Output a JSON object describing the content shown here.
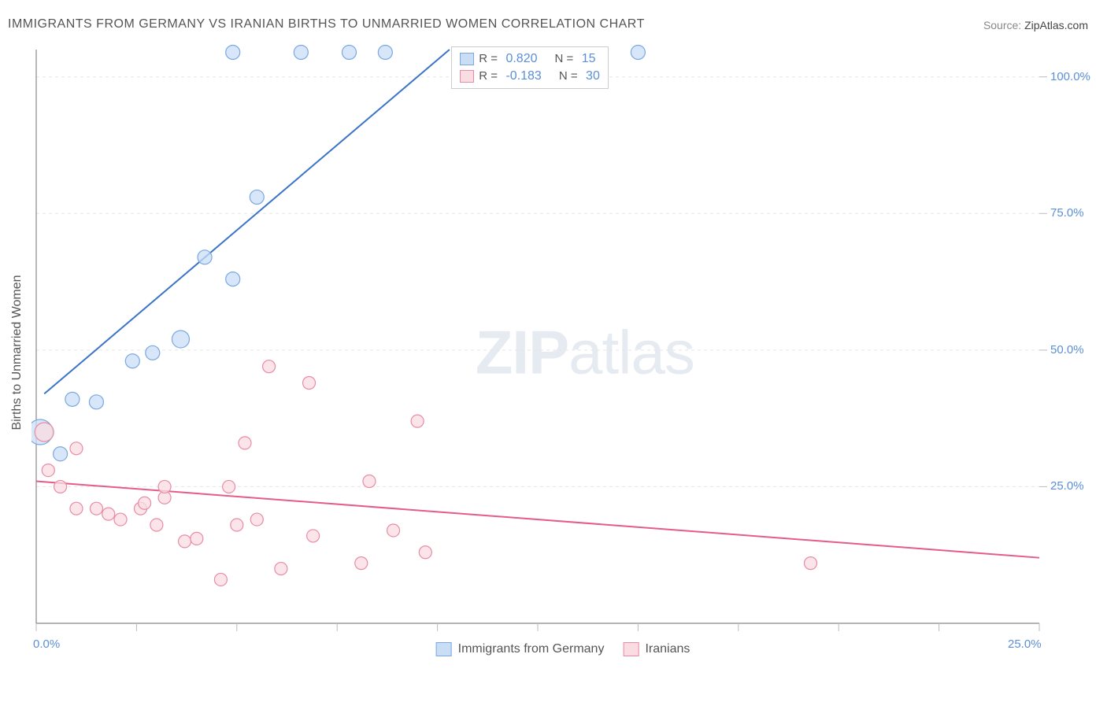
{
  "title": "IMMIGRANTS FROM GERMANY VS IRANIAN BIRTHS TO UNMARRIED WOMEN CORRELATION CHART",
  "source_label": "Source:",
  "source_value": "ZipAtlas.com",
  "watermark": {
    "bold": "ZIP",
    "rest": "atlas"
  },
  "ylabel": "Births to Unmarried Women",
  "chart": {
    "type": "scatter-correlation",
    "background_color": "#ffffff",
    "grid_color": "#e5e5e5",
    "axis_color": "#888888",
    "tick_color": "#bbbbbb",
    "xlim": [
      0,
      25
    ],
    "ylim": [
      0,
      105
    ],
    "xticks": [
      0,
      2.5,
      5,
      7.5,
      10,
      12.5,
      15,
      17.5,
      20,
      22.5,
      25
    ],
    "yticks": [
      25,
      50,
      75,
      100
    ],
    "xtick_labels_shown": {
      "0": "0.0%",
      "25": "25.0%"
    },
    "ytick_labels": {
      "25": "25.0%",
      "50": "50.0%",
      "75": "75.0%",
      "100": "100.0%"
    },
    "tick_label_color": "#5b8fd6",
    "tick_label_fontsize": 15,
    "series": [
      {
        "name": "Immigrants from Germany",
        "color_fill": "#c9ddf5",
        "color_stroke": "#7ba8e0",
        "marker_radius": 9,
        "R": "0.820",
        "N": "15",
        "line": {
          "x1": 0.2,
          "y1": 42,
          "x2": 10.3,
          "y2": 105,
          "color": "#3a74c8",
          "width": 2
        },
        "points": [
          {
            "x": 0.1,
            "y": 35,
            "r": 16
          },
          {
            "x": 0.6,
            "y": 31,
            "r": 9
          },
          {
            "x": 0.9,
            "y": 41,
            "r": 9
          },
          {
            "x": 1.5,
            "y": 40.5,
            "r": 9
          },
          {
            "x": 2.4,
            "y": 48,
            "r": 9
          },
          {
            "x": 2.9,
            "y": 49.5,
            "r": 9
          },
          {
            "x": 3.6,
            "y": 52,
            "r": 11
          },
          {
            "x": 4.2,
            "y": 67,
            "r": 9
          },
          {
            "x": 4.9,
            "y": 63,
            "r": 9
          },
          {
            "x": 5.5,
            "y": 78,
            "r": 9
          },
          {
            "x": 4.9,
            "y": 104.5,
            "r": 9
          },
          {
            "x": 6.6,
            "y": 104.5,
            "r": 9
          },
          {
            "x": 7.8,
            "y": 104.5,
            "r": 9
          },
          {
            "x": 8.7,
            "y": 104.5,
            "r": 9
          },
          {
            "x": 15.0,
            "y": 104.5,
            "r": 9
          }
        ]
      },
      {
        "name": "Iranians",
        "color_fill": "#fadce3",
        "color_stroke": "#e88ca3",
        "marker_radius": 9,
        "R": "-0.183",
        "N": "30",
        "line": {
          "x1": 0.0,
          "y1": 26,
          "x2": 25.0,
          "y2": 12,
          "color": "#e45d87",
          "width": 2
        },
        "points": [
          {
            "x": 0.2,
            "y": 35,
            "r": 12
          },
          {
            "x": 0.3,
            "y": 28,
            "r": 8
          },
          {
            "x": 1.0,
            "y": 32,
            "r": 8
          },
          {
            "x": 0.6,
            "y": 25,
            "r": 8
          },
          {
            "x": 1.0,
            "y": 21,
            "r": 8
          },
          {
            "x": 1.5,
            "y": 21,
            "r": 8
          },
          {
            "x": 1.8,
            "y": 20,
            "r": 8
          },
          {
            "x": 2.1,
            "y": 19,
            "r": 8
          },
          {
            "x": 2.6,
            "y": 21,
            "r": 8
          },
          {
            "x": 2.7,
            "y": 22,
            "r": 8
          },
          {
            "x": 3.2,
            "y": 23,
            "r": 8
          },
          {
            "x": 3.0,
            "y": 18,
            "r": 8
          },
          {
            "x": 3.7,
            "y": 15,
            "r": 8
          },
          {
            "x": 4.0,
            "y": 15.5,
            "r": 8
          },
          {
            "x": 3.2,
            "y": 25,
            "r": 8
          },
          {
            "x": 4.6,
            "y": 8,
            "r": 8
          },
          {
            "x": 4.8,
            "y": 25,
            "r": 8
          },
          {
            "x": 5.0,
            "y": 18,
            "r": 8
          },
          {
            "x": 5.2,
            "y": 33,
            "r": 8
          },
          {
            "x": 5.5,
            "y": 19,
            "r": 8
          },
          {
            "x": 5.8,
            "y": 47,
            "r": 8
          },
          {
            "x": 6.1,
            "y": 10,
            "r": 8
          },
          {
            "x": 6.8,
            "y": 44,
            "r": 8
          },
          {
            "x": 6.9,
            "y": 16,
            "r": 8
          },
          {
            "x": 8.3,
            "y": 26,
            "r": 8
          },
          {
            "x": 8.1,
            "y": 11,
            "r": 8
          },
          {
            "x": 8.9,
            "y": 17,
            "r": 8
          },
          {
            "x": 9.5,
            "y": 37,
            "r": 8
          },
          {
            "x": 9.7,
            "y": 13,
            "r": 8
          },
          {
            "x": 19.3,
            "y": 11,
            "r": 8
          }
        ]
      }
    ],
    "stats_box": {
      "left_pct": 39.5,
      "top_pct": 0.5
    },
    "legend_labels": [
      "Immigrants from Germany",
      "Iranians"
    ]
  }
}
